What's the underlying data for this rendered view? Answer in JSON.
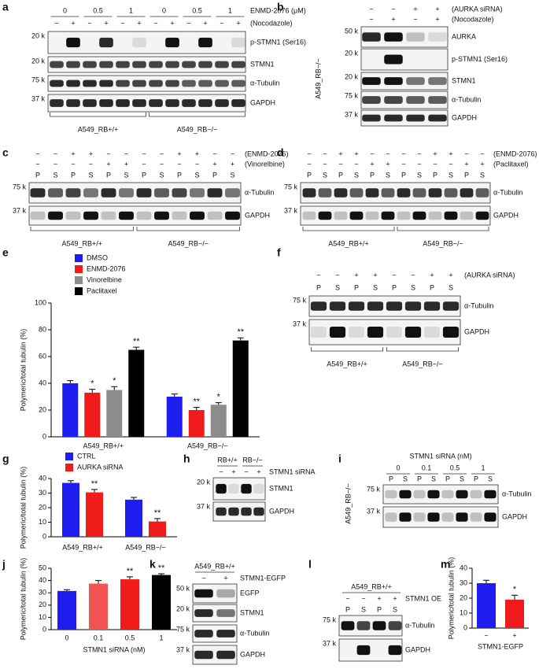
{
  "chart_data": [
    {
      "type": "bar",
      "letter": "e",
      "ylabel": "Polymeric/total tubulin (%)",
      "legend": "upper left",
      "categories": [
        "A549_RB+/+",
        "A549_RB−/−"
      ],
      "series": [
        {
          "name": "DMSO",
          "color": "#1e1ef0",
          "values": [
            40,
            30
          ],
          "errors": [
            2,
            2
          ],
          "annotations": [
            null,
            null
          ]
        },
        {
          "name": "ENMD-2076",
          "color": "#f01c1c",
          "values": [
            33,
            20
          ],
          "errors": [
            2.5,
            2
          ],
          "annotations": [
            "*",
            "**"
          ]
        },
        {
          "name": "Vinorelbine",
          "color": "#8c8c8c",
          "values": [
            35,
            24
          ],
          "errors": [
            2.5,
            1.5
          ],
          "annotations": [
            "*",
            "*"
          ]
        },
        {
          "name": "Paclitaxel",
          "color": "#000000",
          "values": [
            65,
            72
          ],
          "errors": [
            2,
            2
          ],
          "annotations": [
            "**",
            "**"
          ]
        }
      ],
      "ylim": [
        0,
        100
      ],
      "yticks": [
        0,
        20,
        40,
        60,
        80,
        100
      ]
    },
    {
      "type": "bar",
      "letter": "g",
      "ylabel": "Polymeric/total tubulin (%)",
      "legend": "upper left",
      "categories": [
        "A549_RB+/+",
        "A549_RB−/−"
      ],
      "series": [
        {
          "name": "CTRL",
          "color": "#1e1ef0",
          "values": [
            37,
            25.5
          ],
          "errors": [
            1.5,
            1.5
          ],
          "annotations": [
            null,
            null
          ]
        },
        {
          "name": "AURKA siRNA",
          "color": "#f01c1c",
          "values": [
            30.5,
            10.5
          ],
          "errors": [
            2,
            2
          ],
          "annotations": [
            "**",
            "**"
          ]
        }
      ],
      "ylim": [
        0,
        40
      ],
      "yticks": [
        0,
        10,
        20,
        30,
        40
      ]
    },
    {
      "type": "bar",
      "letter": "j",
      "ylabel": "Polymeric/total tubulin (%)",
      "xlabel": "STMN1 siRNA (nM)",
      "categories": [
        "0",
        "0.1",
        "0.5",
        "1"
      ],
      "series": [
        {
          "colors": [
            "#1e1ef0",
            "#f25454",
            "#f01c1c",
            "#000000"
          ],
          "values": [
            31.5,
            37.5,
            41,
            44.5
          ],
          "errors": [
            1,
            2.5,
            2,
            1
          ],
          "annotations": [
            null,
            null,
            "**",
            "**"
          ]
        }
      ],
      "ylim": [
        0,
        50
      ],
      "yticks": [
        0,
        10,
        20,
        30,
        40,
        50
      ]
    },
    {
      "type": "bar",
      "letter": "m",
      "ylabel": "Polymeric/total tubulin (%)",
      "xlabel": "STMN1-EGFP",
      "categories": [
        "−",
        "+"
      ],
      "series": [
        {
          "colors": [
            "#1e1ef0",
            "#f01c1c"
          ],
          "values": [
            30,
            19
          ],
          "errors": [
            2,
            3
          ],
          "annotations": [
            null,
            "*"
          ]
        }
      ],
      "ylim": [
        0,
        40
      ],
      "yticks": [
        0,
        10,
        20,
        30,
        40
      ]
    }
  ],
  "blots": [
    {
      "letter": "a",
      "headers": [
        {
          "items": [
            "0",
            "0.5",
            "1",
            "0",
            "0.5",
            "1"
          ],
          "label": "ENMD-2076 (μM)"
        },
        {
          "items": [
            "−",
            "+",
            "−",
            "+",
            "−",
            "+",
            "−",
            "+",
            "−",
            "+",
            "−",
            "+"
          ],
          "label": "(Nocodazole)"
        }
      ],
      "rows": [
        {
          "marker": "20 k",
          "label": "p-STMN1 (Ser16)"
        },
        {
          "marker": "20 k",
          "label": "STMN1"
        },
        {
          "marker": "75 k",
          "label": "α-Tubulin"
        },
        {
          "marker": "37 k",
          "label": "GAPDH"
        }
      ],
      "groups": [
        "A549_RB+/+",
        "A549_RB−/−"
      ]
    },
    {
      "letter": "b",
      "side": "A549_RB−/−",
      "headers": [
        {
          "items": [
            "−",
            "−",
            "+",
            "+"
          ],
          "label": "(AURKA siRNA)"
        },
        {
          "items": [
            "−",
            "+",
            "−",
            "+"
          ],
          "label": "(Nocodazole)"
        }
      ],
      "rows": [
        {
          "marker": "50 k",
          "label": "AURKA"
        },
        {
          "marker": "20 k",
          "label": "p-STMN1 (Ser16)"
        },
        {
          "marker": "20 k",
          "label": "STMN1"
        },
        {
          "marker": "75 k",
          "label": "α-Tubulin"
        },
        {
          "marker": "37 k",
          "label": "GAPDH"
        }
      ]
    },
    {
      "letter": "c",
      "headers": [
        {
          "items": [
            "−",
            "−",
            "+",
            "+",
            "−",
            "−",
            "−",
            "−",
            "+",
            "+",
            "−",
            "−"
          ],
          "label": "(ENMD-2076)"
        },
        {
          "items": [
            "−",
            "−",
            "−",
            "−",
            "+",
            "+",
            "−",
            "−",
            "−",
            "−",
            "+",
            "+"
          ],
          "label": "(Vinorelbine)"
        },
        {
          "items": [
            "P",
            "S",
            "P",
            "S",
            "P",
            "S",
            "P",
            "S",
            "P",
            "S",
            "P",
            "S"
          ]
        }
      ],
      "rows": [
        {
          "marker": "75 k",
          "label": "α-Tubulin"
        },
        {
          "marker": "37 k",
          "label": "GAPDH"
        }
      ],
      "groups": [
        "A549_RB+/+",
        "A549_RB−/−"
      ]
    },
    {
      "letter": "d",
      "headers": [
        {
          "items": [
            "−",
            "−",
            "+",
            "+",
            "−",
            "−",
            "−",
            "−",
            "+",
            "+",
            "−",
            "−"
          ],
          "label": "(ENMD-2076)"
        },
        {
          "items": [
            "−",
            "−",
            "−",
            "−",
            "+",
            "+",
            "−",
            "−",
            "−",
            "−",
            "+",
            "+"
          ],
          "label": "(Paclitaxel)"
        },
        {
          "items": [
            "P",
            "S",
            "P",
            "S",
            "P",
            "S",
            "P",
            "S",
            "P",
            "S",
            "P",
            "S"
          ]
        }
      ],
      "rows": [
        {
          "marker": "75 k",
          "label": "α-Tubulin"
        },
        {
          "marker": "37 k",
          "label": "GAPDH"
        }
      ],
      "groups": [
        "A549_RB+/+",
        "A549_RB−/−"
      ]
    },
    {
      "letter": "f",
      "headers": [
        {
          "items": [
            "−",
            "−",
            "+",
            "+",
            "−",
            "−",
            "+",
            "+"
          ],
          "label": "(AURKA siRNA)"
        },
        {
          "items": [
            "P",
            "S",
            "P",
            "S",
            "P",
            "S",
            "P",
            "S"
          ]
        }
      ],
      "rows": [
        {
          "marker": "75 k",
          "label": "α-Tubulin"
        },
        {
          "marker": "37 k",
          "label": "GAPDH"
        }
      ],
      "groups": [
        "A549_RB+/+",
        "A549_RB−/−"
      ]
    },
    {
      "letter": "h",
      "headers": [
        {
          "items": [
            "RB+/+",
            "RB−/−"
          ]
        },
        {
          "items": [
            "−",
            "+",
            "−",
            "+"
          ],
          "label": "STMN1 siRNA"
        }
      ],
      "rows": [
        {
          "marker": "20 k",
          "label": "STMN1"
        },
        {
          "marker": "37 k",
          "label": "GAPDH"
        }
      ]
    },
    {
      "letter": "i",
      "title": "STMN1 siRNA (nM)",
      "side": "A549_RB−/−",
      "headers": [
        {
          "items": [
            "0",
            "0.1",
            "0.5",
            "1"
          ]
        },
        {
          "items": [
            "P",
            "S",
            "P",
            "S",
            "P",
            "S",
            "P",
            "S"
          ]
        }
      ],
      "rows": [
        {
          "marker": "75 k",
          "label": "α-Tubulin"
        },
        {
          "marker": "37 k",
          "label": "GAPDH"
        }
      ]
    },
    {
      "letter": "k",
      "headers": [
        {
          "items": [
            "A549_RB+/+"
          ]
        },
        {
          "items": [
            "−",
            "+"
          ],
          "label": "STMN1-EGFP"
        }
      ],
      "rows": [
        {
          "marker": "50 k",
          "label": "EGFP"
        },
        {
          "marker": "20 k",
          "label": "STMN1"
        },
        {
          "marker": "75 k",
          "label": "α-Tubulin"
        },
        {
          "marker": "37 k",
          "label": "GAPDH"
        }
      ]
    },
    {
      "letter": "l",
      "headers": [
        {
          "items": [
            "A549_RB+/+"
          ]
        },
        {
          "items": [
            "−",
            "−",
            "+",
            "+"
          ],
          "label": "STMN1 OE"
        },
        {
          "items": [
            "P",
            "S",
            "P",
            "S"
          ]
        }
      ],
      "rows": [
        {
          "marker": "75 k",
          "label": "α-Tubulin"
        },
        {
          "marker": "37 k",
          "label": "GAPDH"
        }
      ]
    }
  ]
}
